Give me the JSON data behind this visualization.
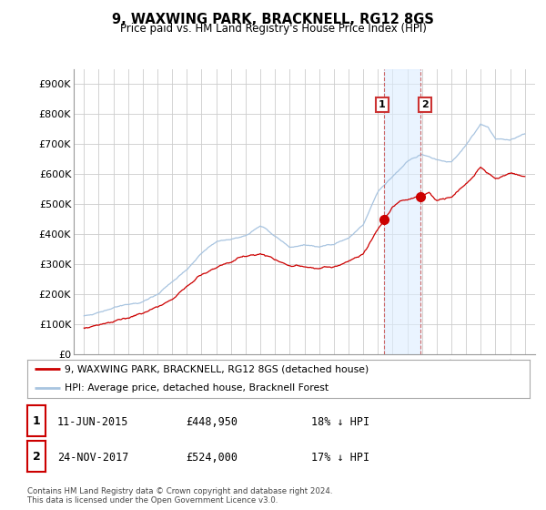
{
  "title": "9, WAXWING PARK, BRACKNELL, RG12 8GS",
  "subtitle": "Price paid vs. HM Land Registry's House Price Index (HPI)",
  "ylim": [
    0,
    950000
  ],
  "yticks": [
    0,
    100000,
    200000,
    300000,
    400000,
    500000,
    600000,
    700000,
    800000,
    900000
  ],
  "ytick_labels": [
    "£0",
    "£100K",
    "£200K",
    "£300K",
    "£400K",
    "£500K",
    "£600K",
    "£700K",
    "£800K",
    "£900K"
  ],
  "hpi_color": "#a8c4e0",
  "price_color": "#cc0000",
  "marker1_date": 2015.44,
  "marker1_price": 448950,
  "marker2_date": 2017.9,
  "marker2_price": 524000,
  "shade_color": "#ddeeff",
  "legend_line1": "9, WAXWING PARK, BRACKNELL, RG12 8GS (detached house)",
  "legend_line2": "HPI: Average price, detached house, Bracknell Forest",
  "table_rows": [
    {
      "num": "1",
      "date": "11-JUN-2015",
      "price": "£448,950",
      "note": "18% ↓ HPI"
    },
    {
      "num": "2",
      "date": "24-NOV-2017",
      "price": "£524,000",
      "note": "17% ↓ HPI"
    }
  ],
  "footnote": "Contains HM Land Registry data © Crown copyright and database right 2024.\nThis data is licensed under the Open Government Licence v3.0.",
  "background_color": "#ffffff",
  "grid_color": "#cccccc"
}
